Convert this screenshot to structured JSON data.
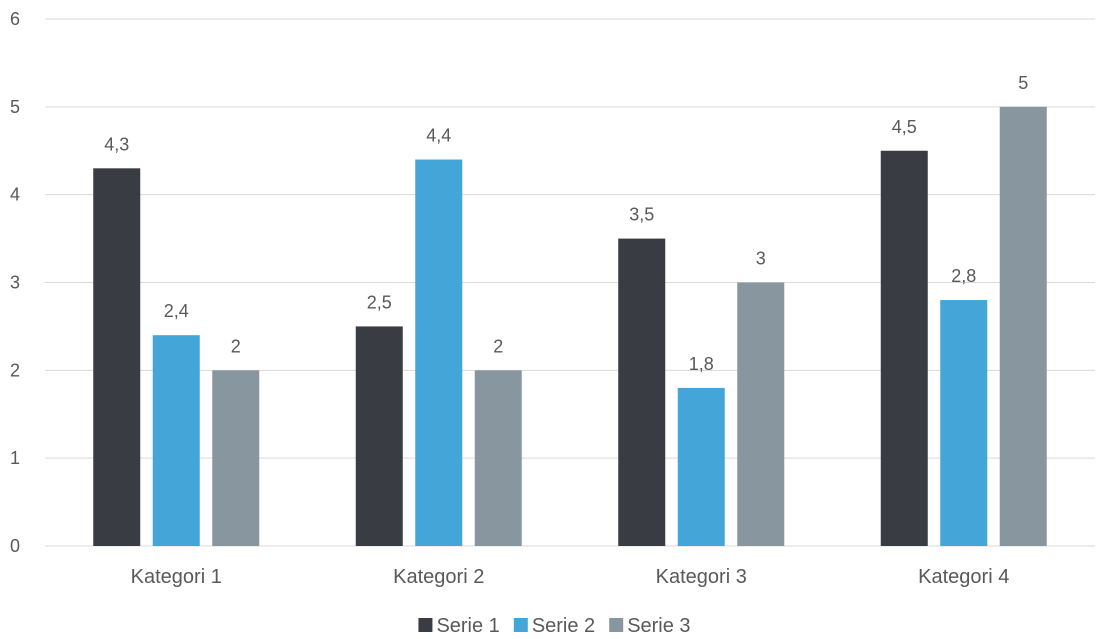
{
  "chart_data": {
    "type": "bar",
    "categories": [
      "Kategori 1",
      "Kategori 2",
      "Kategori 3",
      "Kategori 4"
    ],
    "series": [
      {
        "name": "Serie 1",
        "values": [
          4.3,
          2.5,
          3.5,
          4.5
        ],
        "labels": [
          "4,3",
          "2,5",
          "3,5",
          "4,5"
        ],
        "color": "#3a3c44"
      },
      {
        "name": "Serie 2",
        "values": [
          2.4,
          4.4,
          1.8,
          2.8
        ],
        "labels": [
          "2,4",
          "4,4",
          "1,8",
          "2,8"
        ],
        "color": "#43a5d8"
      },
      {
        "name": "Serie 3",
        "values": [
          2,
          2,
          3,
          5
        ],
        "labels": [
          "2",
          "2",
          "3",
          "5"
        ],
        "color": "#87969f"
      }
    ],
    "yticks": [
      "0",
      "1",
      "2",
      "3",
      "4",
      "5",
      "6"
    ],
    "ylim": [
      0,
      6
    ],
    "grid": true,
    "legend_position": "bottom"
  }
}
